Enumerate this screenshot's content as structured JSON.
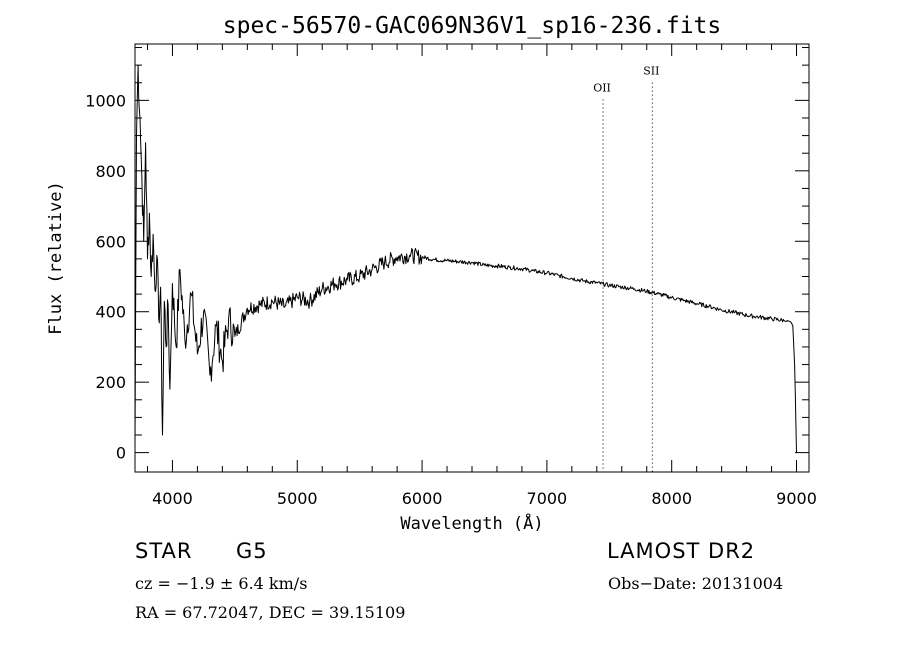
{
  "chart_data": {
    "type": "line",
    "title": "spec-56570-GAC069N36V1_sp16-236.fits",
    "xlabel": "Wavelength (Å)",
    "ylabel": "Flux (relative)",
    "xlim": [
      3700,
      9100
    ],
    "ylim": [
      -55,
      1160
    ],
    "xticks": [
      4000,
      5000,
      6000,
      7000,
      8000,
      9000
    ],
    "yticks": [
      0,
      200,
      400,
      600,
      800,
      1000
    ],
    "grid": false,
    "series": [
      {
        "x": [
          3700,
          3712,
          3725,
          3740,
          3755,
          3770,
          3785,
          3800,
          3815,
          3830,
          3845,
          3860,
          3875,
          3890,
          3905,
          3920,
          3935,
          3950,
          3965,
          3980,
          4000,
          4030,
          4060,
          4100,
          4150,
          4200,
          4250,
          4300,
          4350,
          4400,
          4450,
          4500,
          4600,
          4700,
          4800,
          4900,
          5000,
          5100,
          5200,
          5300,
          5400,
          5500,
          5600,
          5700,
          5800,
          5900,
          6000,
          6100,
          6200,
          6300,
          6400,
          6500,
          6600,
          6700,
          6800,
          6900,
          7000,
          7100,
          7200,
          7300,
          7400,
          7500,
          7600,
          7700,
          7800,
          7900,
          8000,
          8100,
          8200,
          8300,
          8400,
          8500,
          8600,
          8700,
          8800,
          8900,
          8950,
          8970,
          8985,
          9000
        ],
        "y": [
          20,
          900,
          1100,
          950,
          780,
          600,
          880,
          550,
          680,
          500,
          620,
          460,
          560,
          380,
          470,
          50,
          430,
          300,
          420,
          180,
          480,
          300,
          520,
          320,
          450,
          280,
          400,
          220,
          360,
          260,
          380,
          330,
          410,
          420,
          430,
          415,
          440,
          430,
          465,
          480,
          490,
          500,
          520,
          540,
          555,
          560,
          555,
          548,
          545,
          542,
          540,
          532,
          530,
          526,
          522,
          515,
          510,
          502,
          495,
          487,
          482,
          475,
          470,
          465,
          458,
          450,
          440,
          432,
          423,
          415,
          405,
          398,
          390,
          385,
          380,
          375,
          372,
          360,
          250,
          0
        ]
      }
    ],
    "annotations": [
      {
        "label": "OII",
        "x": 7450,
        "ylevel": 1025
      },
      {
        "label": "SII",
        "x": 7845,
        "ylevel": 1073
      }
    ]
  },
  "info": {
    "object_type": "STAR",
    "object_class": "G5",
    "survey": "LAMOST DR2",
    "redshift": "cz = −1.9 ± 6.4 km/s",
    "obs_date": "Obs−Date: 20131004",
    "coordinates": "RA =  67.72047, DEC =  39.15109"
  }
}
